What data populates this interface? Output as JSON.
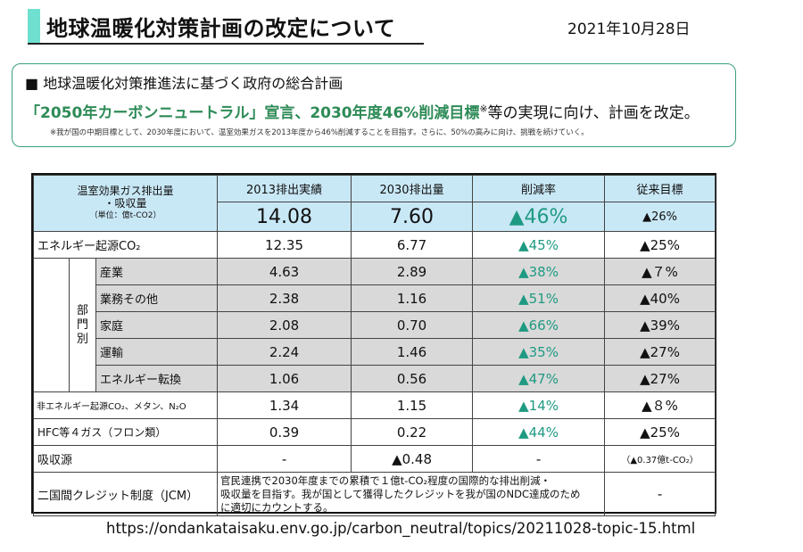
{
  "header": {
    "title": "地球温暖化対策計画の改定について",
    "date": "2021年10月28日"
  },
  "summary": {
    "heading": "■ 地球温暖化対策推進法に基づく政府の総合計画",
    "highlight": "「2050年カーボンニュートラル」宣言、2030年度46%削減目標",
    "mark": "※",
    "rest": "等の実現に向け、計画を改定。",
    "note": "※我が国の中期目標として、2030年度において、温室効果ガスを2013年度から46%削減することを目指す。さらに、50%の高みに向け、挑戦を続けていく。"
  },
  "table": {
    "corner_line1": "温室効果ガス排出量",
    "corner_line2": "・吸収量",
    "corner_unit": "（単位：億t-CO2）",
    "col_headers": [
      "2013排出実績",
      "2030排出量",
      "削減率",
      "従来目標"
    ],
    "total": {
      "v2013": "14.08",
      "v2030": "7.60",
      "rate": "▲46%",
      "prev": "▲26%"
    },
    "energy": {
      "label": "エネルギー起源CO₂",
      "v2013": "12.35",
      "v2030": "6.77",
      "rate": "▲45%",
      "prev": "▲25%"
    },
    "sector_label": "部門別",
    "sectors": [
      {
        "label": "産業",
        "v2013": "4.63",
        "v2030": "2.89",
        "rate": "▲38%",
        "prev": "▲７%"
      },
      {
        "label": "業務その他",
        "v2013": "2.38",
        "v2030": "1.16",
        "rate": "▲51%",
        "prev": "▲40%"
      },
      {
        "label": "家庭",
        "v2013": "2.08",
        "v2030": "0.70",
        "rate": "▲66%",
        "prev": "▲39%"
      },
      {
        "label": "運輸",
        "v2013": "2.24",
        "v2030": "1.46",
        "rate": "▲35%",
        "prev": "▲27%"
      },
      {
        "label": "エネルギー転換",
        "v2013": "1.06",
        "v2030": "0.56",
        "rate": "▲47%",
        "prev": "▲27%"
      }
    ],
    "non_energy": {
      "label": "非エネルギー起源CO₂、メタン、N₂O",
      "v2013": "1.34",
      "v2030": "1.15",
      "rate": "▲14%",
      "prev": "▲８%"
    },
    "hfc": {
      "label": "HFC等４ガス（フロン類）",
      "v2013": "0.39",
      "v2030": "0.22",
      "rate": "▲44%",
      "prev": "▲25%"
    },
    "sink": {
      "label": "吸収源",
      "v2013": "-",
      "v2030": "▲0.48",
      "rate": "-",
      "prev": "（▲0.37億t-CO₂）"
    },
    "jcm": {
      "label": "二国間クレジット制度（JCM）",
      "line1": "官民連携で2030年度までの累積で１億t-CO₂程度の国際的な排出削減・",
      "line2": "吸収量を目指す。我が国として獲得したクレジットを我が国のNDC達成のため",
      "line3": "に適切にカウントする。",
      "prev": "-"
    }
  },
  "footer": {
    "url": "https://ondankataisaku.env.go.jp/carbon_neutral/topics/20211028-topic-15.html"
  }
}
